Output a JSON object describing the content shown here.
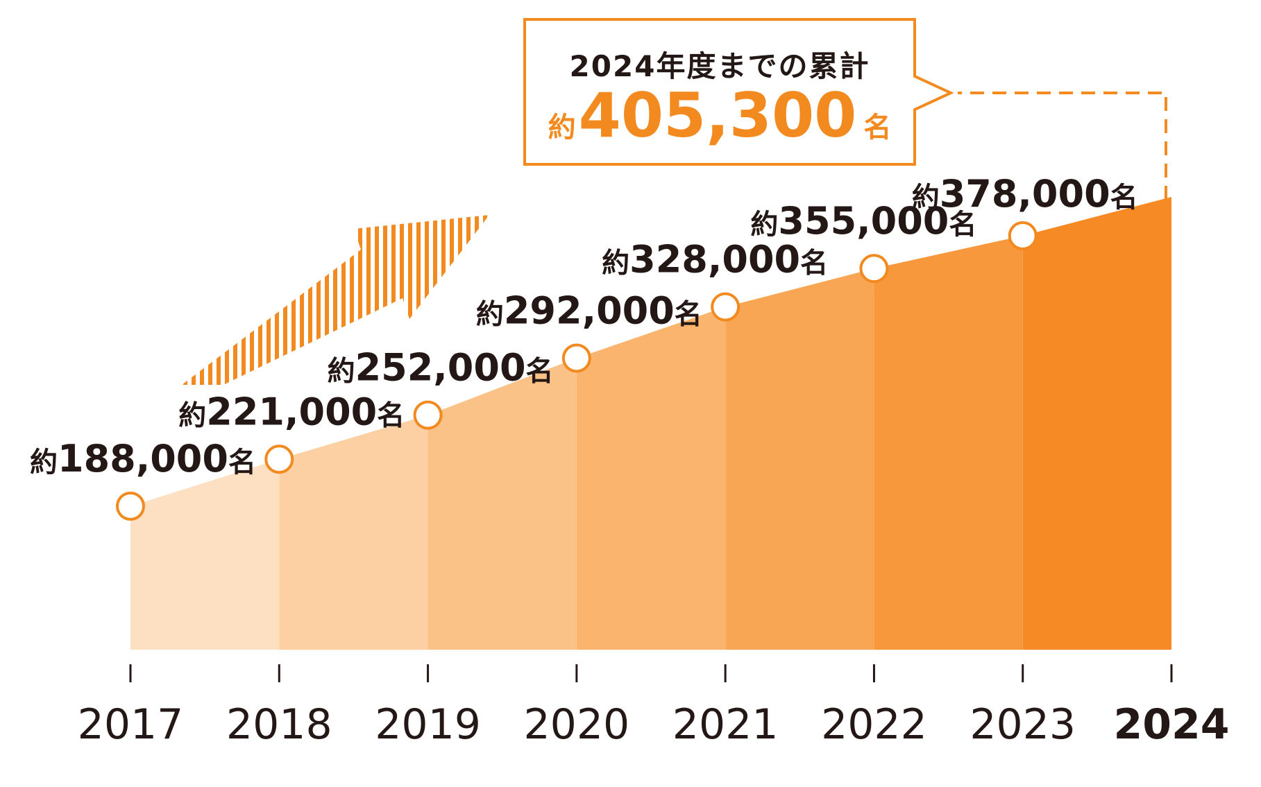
{
  "chart_data": {
    "type": "area",
    "title": "",
    "xlabel": "",
    "ylabel": "",
    "x": [
      "2017",
      "2018",
      "2019",
      "2020",
      "2021",
      "2022",
      "2023",
      "2024"
    ],
    "values": [
      188000,
      221000,
      252000,
      292000,
      328000,
      355000,
      378000,
      405300
    ],
    "point_labels": [
      {
        "prefix": "約",
        "number": "188,000",
        "suffix": "名"
      },
      {
        "prefix": "約",
        "number": "221,000",
        "suffix": "名"
      },
      {
        "prefix": "約",
        "number": "252,000",
        "suffix": "名"
      },
      {
        "prefix": "約",
        "number": "292,000",
        "suffix": "名"
      },
      {
        "prefix": "約",
        "number": "328,000",
        "suffix": "名"
      },
      {
        "prefix": "約",
        "number": "355,000",
        "suffix": "名"
      },
      {
        "prefix": "約",
        "number": "378,000",
        "suffix": "名"
      }
    ],
    "ylim": [
      0,
      405300
    ],
    "grid": false,
    "legend": "none"
  },
  "callout": {
    "title": "2024年度までの累計",
    "prefix": "約",
    "value": "405,300",
    "suffix": "名"
  },
  "colors": {
    "accent": "#F28A1F",
    "text": "#231815",
    "fills": [
      "#FDDFC2",
      "#FCD0A3",
      "#FBC287",
      "#FAB46D",
      "#F9A654",
      "#F8983C",
      "#F68A24"
    ]
  }
}
